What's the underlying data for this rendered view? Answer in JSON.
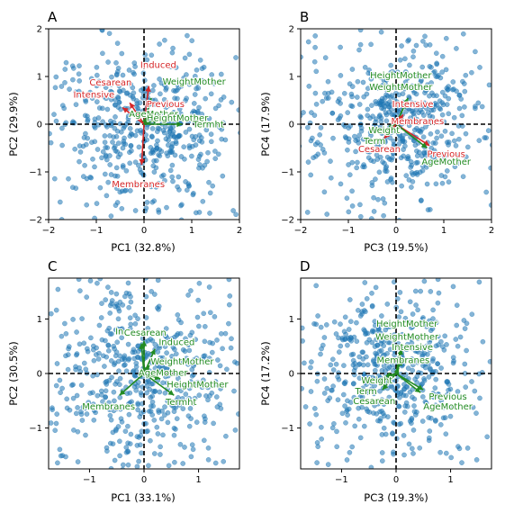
{
  "figure": {
    "point_color": "#1f77b4",
    "red_arrow_color": "#d62728",
    "green_arrow_color": "#228B22"
  },
  "chart_data": [
    {
      "type": "scatter",
      "panel": "A",
      "xlabel": "PC1 (32.8%)",
      "ylabel": "PC2 (29.9%)",
      "xlim": [
        -2,
        2
      ],
      "ylim": [
        -2,
        2
      ],
      "xticks": [
        -2,
        -1,
        0,
        1,
        2
      ],
      "yticks": [
        -2,
        -1,
        0,
        1,
        2
      ],
      "zero_lines": true,
      "point_seed": 11,
      "point_spread": [
        0.95,
        0.8
      ],
      "vectors": [
        {
          "label": "Induced",
          "color": "red",
          "x": 0.1,
          "y": 0.8,
          "tx": 0.3,
          "ty": 1.25
        },
        {
          "label": "Cesarean",
          "color": "red",
          "x": -0.3,
          "y": 0.45,
          "tx": -0.7,
          "ty": 0.88
        },
        {
          "label": "Intensive",
          "color": "red",
          "x": -0.45,
          "y": 0.35,
          "tx": -1.05,
          "ty": 0.62
        },
        {
          "label": "Previous",
          "color": "red",
          "x": 0.2,
          "y": 0.25,
          "tx": 0.45,
          "ty": 0.42
        },
        {
          "label": "Membranes",
          "color": "red",
          "x": -0.05,
          "y": -0.85,
          "tx": -0.12,
          "ty": -1.25
        },
        {
          "label": "WeightMother",
          "color": "green",
          "x": 0.15,
          "y": 0.55,
          "tx": 1.05,
          "ty": 0.9
        },
        {
          "label": "AgeMother",
          "color": "green",
          "x": 0.05,
          "y": 0.15,
          "tx": 0.2,
          "ty": 0.22
        },
        {
          "label": "HeightMother",
          "color": "green",
          "x": 0.3,
          "y": 0.1,
          "tx": 0.7,
          "ty": 0.13
        },
        {
          "label": "Termht",
          "color": "green",
          "x": 0.8,
          "y": 0.0,
          "tx": 1.35,
          "ty": 0.0
        }
      ]
    },
    {
      "type": "scatter",
      "panel": "B",
      "xlabel": "PC3 (19.5%)",
      "ylabel": "PC4 (17.9%)",
      "xlim": [
        -2,
        2
      ],
      "ylim": [
        -2,
        2
      ],
      "xticks": [
        -2,
        -1,
        0,
        1,
        2
      ],
      "yticks": [
        -2,
        -1,
        0,
        1,
        2
      ],
      "zero_lines": true,
      "point_seed": 23,
      "point_spread": [
        0.8,
        0.8
      ],
      "vectors": [
        {
          "label": "HeightMother",
          "color": "green",
          "x": 0.25,
          "y": 0.55,
          "tx": 0.1,
          "ty": 1.03
        },
        {
          "label": "WeightMother",
          "color": "green",
          "x": 0.2,
          "y": 0.45,
          "tx": 0.1,
          "ty": 0.78
        },
        {
          "label": "Intensive",
          "color": "red",
          "x": 0.15,
          "y": 0.2,
          "tx": 0.35,
          "ty": 0.42
        },
        {
          "label": "Membranes",
          "color": "red",
          "x": 0.3,
          "y": 0.05,
          "tx": 0.45,
          "ty": 0.07
        },
        {
          "label": "Weight",
          "color": "green",
          "x": -0.15,
          "y": -0.05,
          "tx": -0.25,
          "ty": -0.12
        },
        {
          "label": "Term",
          "color": "green",
          "x": -0.3,
          "y": -0.2,
          "tx": -0.45,
          "ty": -0.35
        },
        {
          "label": "Cesarean",
          "color": "red",
          "x": -0.25,
          "y": -0.3,
          "tx": -0.35,
          "ty": -0.52
        },
        {
          "label": "Previous",
          "color": "red",
          "x": 0.7,
          "y": -0.45,
          "tx": 1.05,
          "ty": -0.62
        },
        {
          "label": "AgeMother",
          "color": "green",
          "x": 0.65,
          "y": -0.5,
          "tx": 1.05,
          "ty": -0.78
        }
      ]
    },
    {
      "type": "scatter",
      "panel": "C",
      "xlabel": "PC1 (33.1%)",
      "ylabel": "PC2 (30.5%)",
      "xlim": [
        -1.75,
        1.75
      ],
      "ylim": [
        -1.75,
        1.75
      ],
      "xticks": [
        -1,
        0,
        1
      ],
      "yticks": [
        -1,
        0,
        1
      ],
      "zero_lines": true,
      "point_seed": 37,
      "point_spread": [
        0.75,
        0.8
      ],
      "vectors": [
        {
          "label": "In",
          "color": "green",
          "x": -0.05,
          "y": 0.55,
          "tx": -0.45,
          "ty": 0.78
        },
        {
          "label": "Cesarean",
          "color": "green",
          "x": 0.0,
          "y": 0.6,
          "tx": 0.02,
          "ty": 0.75
        },
        {
          "label": "Induced",
          "color": "green",
          "x": 0.2,
          "y": 0.45,
          "tx": 0.6,
          "ty": 0.58
        },
        {
          "label": "WeightMother",
          "color": "green",
          "x": 0.1,
          "y": 0.15,
          "tx": 0.7,
          "ty": 0.22
        },
        {
          "label": "AgeMother",
          "color": "green",
          "x": 0.05,
          "y": 0.0,
          "tx": 0.35,
          "ty": 0.02
        },
        {
          "label": "HeightMother",
          "color": "green",
          "x": 0.3,
          "y": -0.1,
          "tx": 0.98,
          "ty": -0.2
        },
        {
          "label": "Membranes",
          "color": "green",
          "x": -0.45,
          "y": -0.4,
          "tx": -0.65,
          "ty": -0.6
        },
        {
          "label": "Termht",
          "color": "green",
          "x": 0.55,
          "y": -0.4,
          "tx": 0.68,
          "ty": -0.52
        }
      ]
    },
    {
      "type": "scatter",
      "panel": "D",
      "xlabel": "PC3 (19.3%)",
      "ylabel": "PC4 (17.2%)",
      "xlim": [
        -1.75,
        1.75
      ],
      "ylim": [
        -1.75,
        1.75
      ],
      "xticks": [
        -1,
        0,
        1
      ],
      "yticks": [
        -1,
        0,
        1
      ],
      "zero_lines": true,
      "point_seed": 53,
      "point_spread": [
        0.75,
        0.75
      ],
      "vectors": [
        {
          "label": "HeightMother",
          "color": "green",
          "x": 0.1,
          "y": 0.55,
          "tx": 0.2,
          "ty": 0.92
        },
        {
          "label": "WeightMother",
          "color": "green",
          "x": 0.1,
          "y": 0.45,
          "tx": 0.2,
          "ty": 0.68
        },
        {
          "label": "Intensive",
          "color": "green",
          "x": 0.1,
          "y": 0.25,
          "tx": 0.3,
          "ty": 0.49
        },
        {
          "label": "Membranes",
          "color": "green",
          "x": 0.05,
          "y": 0.1,
          "tx": 0.13,
          "ty": 0.25
        },
        {
          "label": "Weight",
          "color": "green",
          "x": -0.2,
          "y": -0.05,
          "tx": -0.35,
          "ty": -0.12
        },
        {
          "label": "Term",
          "color": "green",
          "x": -0.3,
          "y": -0.15,
          "tx": -0.55,
          "ty": -0.32
        },
        {
          "label": "Cesarean",
          "color": "green",
          "x": -0.25,
          "y": -0.3,
          "tx": -0.4,
          "ty": -0.5
        },
        {
          "label": "Previous",
          "color": "green",
          "x": 0.5,
          "y": -0.3,
          "tx": 0.95,
          "ty": -0.42
        },
        {
          "label": "AgeMother",
          "color": "green",
          "x": 0.45,
          "y": -0.35,
          "tx": 0.95,
          "ty": -0.6
        }
      ]
    }
  ]
}
